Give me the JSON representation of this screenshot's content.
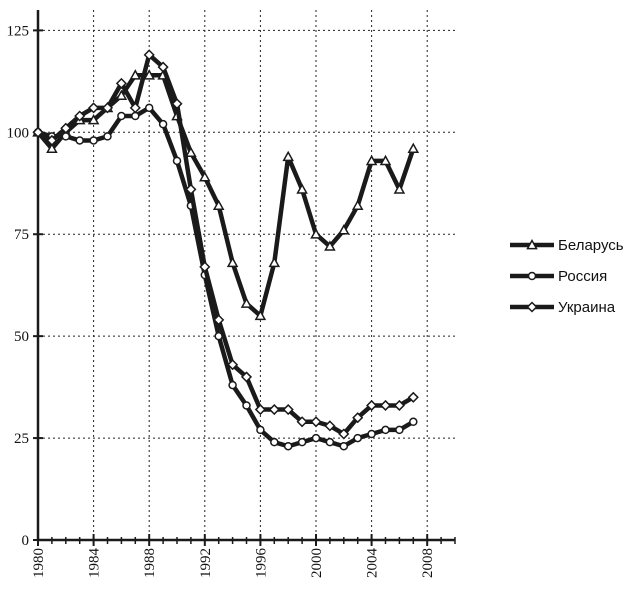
{
  "chart_data": {
    "type": "line",
    "xlim": [
      1980,
      2010
    ],
    "ylim": [
      0,
      130
    ],
    "x_ticks": [
      "1980",
      "1984",
      "1988",
      "1992",
      "1996",
      "2000",
      "2004",
      "2008"
    ],
    "y_ticks": [
      "0",
      "25",
      "50",
      "75",
      "100",
      "125"
    ],
    "grid": true,
    "legend_position": "right",
    "series": [
      {
        "name": "Беларусь",
        "marker": "triangle",
        "x": [
          1980,
          1981,
          1982,
          1983,
          1984,
          1985,
          1986,
          1987,
          1988,
          1989,
          1990,
          1991,
          1992,
          1993,
          1994,
          1995,
          1996,
          1997,
          1998,
          1999,
          2000,
          2001,
          2002,
          2003,
          2004,
          2005,
          2006,
          2007
        ],
        "y": [
          100,
          96,
          100,
          103,
          103,
          106,
          109,
          114,
          114,
          114,
          104,
          95,
          89,
          82,
          68,
          58,
          55,
          68,
          94,
          86,
          75,
          72,
          76,
          82,
          93,
          93,
          86,
          96
        ]
      },
      {
        "name": "Россия",
        "marker": "circle",
        "x": [
          1980,
          1981,
          1982,
          1983,
          1984,
          1985,
          1986,
          1987,
          1988,
          1989,
          1990,
          1991,
          1992,
          1993,
          1994,
          1995,
          1996,
          1997,
          1998,
          1999,
          2000,
          2001,
          2002,
          2003,
          2004,
          2005,
          2006,
          2007
        ],
        "y": [
          100,
          99,
          99,
          98,
          98,
          99,
          104,
          104,
          106,
          102,
          93,
          82,
          65,
          50,
          38,
          33,
          27,
          24,
          23,
          24,
          25,
          24,
          23,
          25,
          26,
          27,
          27,
          29
        ]
      },
      {
        "name": "Украина",
        "marker": "diamond",
        "x": [
          1980,
          1981,
          1982,
          1983,
          1984,
          1985,
          1986,
          1987,
          1988,
          1989,
          1990,
          1991,
          1992,
          1993,
          1994,
          1995,
          1996,
          1997,
          1998,
          1999,
          2000,
          2001,
          2002,
          2003,
          2004,
          2005,
          2006,
          2007
        ],
        "y": [
          100,
          98,
          101,
          104,
          106,
          106,
          112,
          106,
          119,
          116,
          107,
          86,
          67,
          54,
          43,
          40,
          32,
          32,
          32,
          29,
          29,
          28,
          26,
          30,
          33,
          33,
          33,
          35
        ]
      }
    ]
  },
  "colors": {
    "line": "#1a1a1a",
    "grid": "#222222",
    "marker_fill": "#ffffff"
  }
}
